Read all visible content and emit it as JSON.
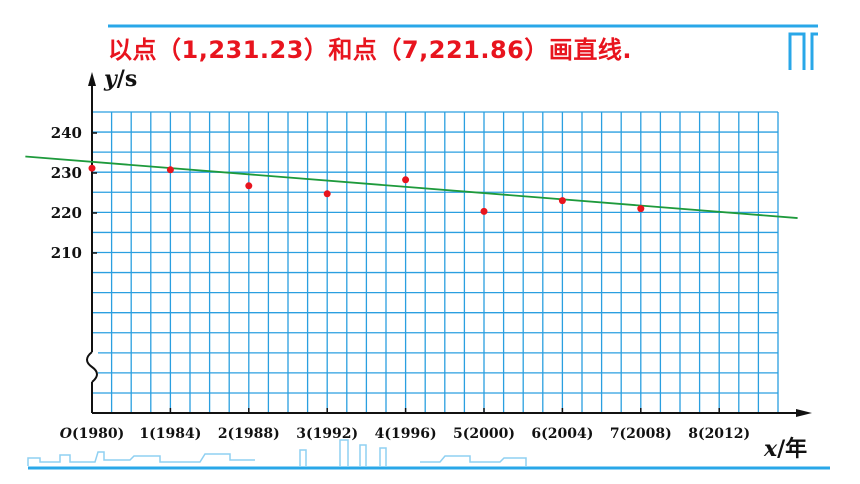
{
  "slide": {
    "title": "以点（1,231.23）和点（7,221.86）画直线."
  },
  "chart_data": {
    "type": "scatter",
    "xlabel_var": "x",
    "xlabel_unit": "/年",
    "ylabel_var": "y",
    "ylabel_unit": "/s",
    "x_ticks": [
      {
        "x": 0,
        "label": "O",
        "label_rest": "(1980)"
      },
      {
        "x": 1,
        "label": "1(1984)"
      },
      {
        "x": 2,
        "label": "2(1988)"
      },
      {
        "x": 3,
        "label": "3(1992)"
      },
      {
        "x": 4,
        "label": "4(1996)"
      },
      {
        "x": 5,
        "label": "5(2000)"
      },
      {
        "x": 6,
        "label": "6(2004)"
      },
      {
        "x": 7,
        "label": "7(2008)"
      },
      {
        "x": 8,
        "label": "8(2012)"
      }
    ],
    "y_ticks": [
      240,
      230,
      220,
      210
    ],
    "y_axis_break": true,
    "points": [
      {
        "x": 0,
        "y": 231.2
      },
      {
        "x": 1,
        "y": 230.8
      },
      {
        "x": 2,
        "y": 226.8
      },
      {
        "x": 3,
        "y": 224.8
      },
      {
        "x": 4,
        "y": 228.3
      },
      {
        "x": 5,
        "y": 220.4
      },
      {
        "x": 6,
        "y": 223.1
      },
      {
        "x": 7,
        "y": 221.1
      }
    ],
    "line_through": [
      {
        "x": 1,
        "y": 231.23
      },
      {
        "x": 7,
        "y": 221.86
      }
    ],
    "grid": true,
    "colors": {
      "grid": "#2a9fe0",
      "points": "#e8141e",
      "fit_line": "#1e9a3c",
      "title": "#e8141e",
      "decor": "#29a7e8"
    }
  }
}
